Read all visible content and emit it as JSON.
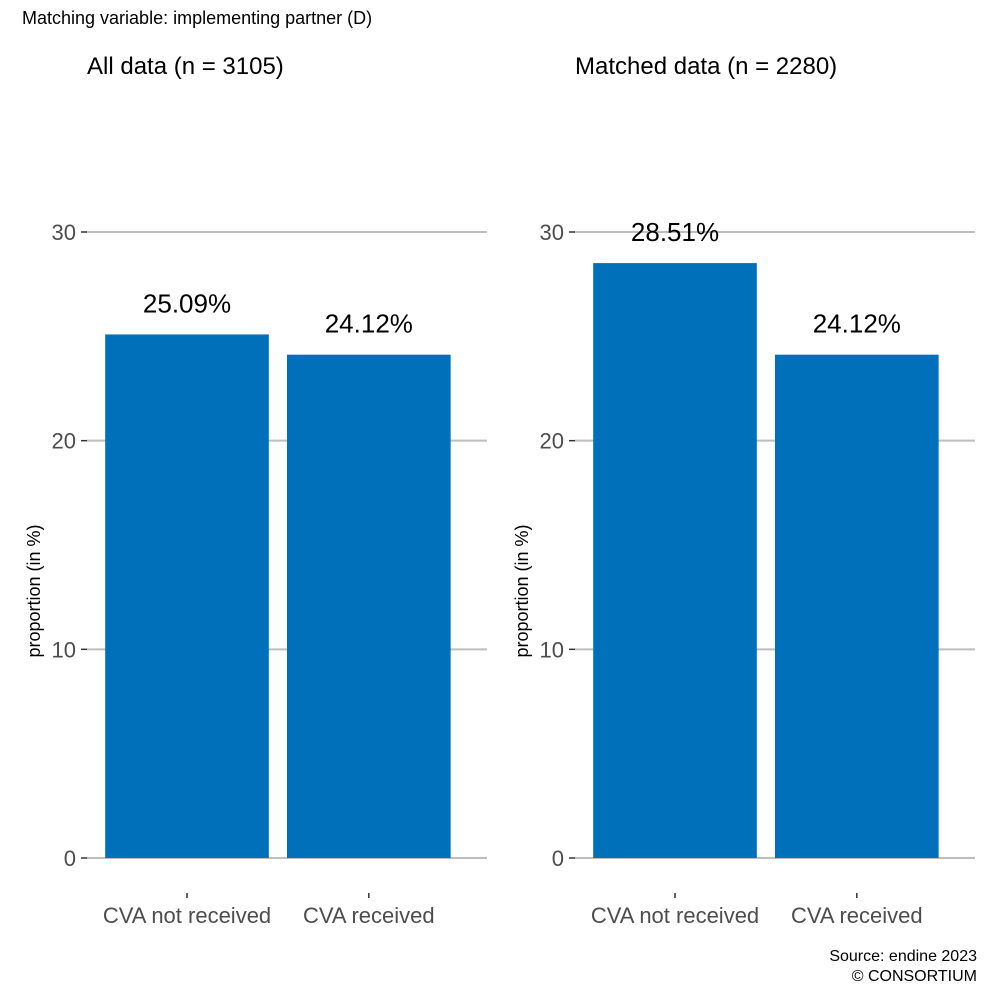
{
  "figure": {
    "title": "Matching variable: implementing partner (D)",
    "caption_source": "Source: endine 2023",
    "caption_copyright": "© CONSORTIUM"
  },
  "colors": {
    "bar": "#0070BA",
    "grid": "#BEBEBE",
    "tick_label": "#4D4D4D",
    "text": "#000000"
  },
  "chart_data": [
    {
      "type": "bar",
      "title": "All data (n = 3105)",
      "ylabel": "proportion (in %)",
      "xlabel": "",
      "categories": [
        "CVA not received",
        "CVA received"
      ],
      "values": [
        25.09,
        24.12
      ],
      "value_labels": [
        "25.09%",
        "24.12%"
      ],
      "yticks": [
        0,
        10,
        20,
        30
      ],
      "ylim": [
        0,
        30
      ],
      "grid": "horizontal"
    },
    {
      "type": "bar",
      "title": "Matched data (n = 2280)",
      "ylabel": "proportion (in %)",
      "xlabel": "",
      "categories": [
        "CVA not received",
        "CVA received"
      ],
      "values": [
        28.51,
        24.12
      ],
      "value_labels": [
        "28.51%",
        "24.12%"
      ],
      "yticks": [
        0,
        10,
        20,
        30
      ],
      "ylim": [
        0,
        30
      ],
      "grid": "horizontal"
    }
  ]
}
